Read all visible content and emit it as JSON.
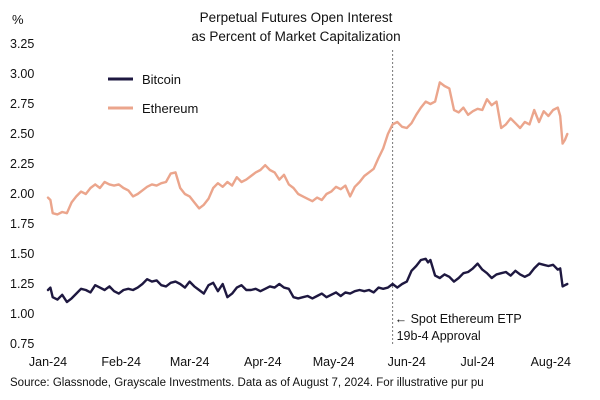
{
  "chart_data": {
    "type": "line",
    "title_lines": [
      "Perpetual Futures Open Interest",
      "as Percent of Market Capitalization"
    ],
    "ylabel": "%",
    "ylim": [
      0.75,
      3.25
    ],
    "yticks": [
      3.25,
      3.0,
      2.75,
      2.5,
      2.25,
      2.0,
      1.75,
      1.5,
      1.25,
      1.0,
      0.75
    ],
    "ytick_labels": [
      "3.25",
      "3.00",
      "2.75",
      "2.50",
      "2.25",
      "2.00",
      "1.75",
      "1.50",
      "1.25",
      "1.00",
      "0.75"
    ],
    "xlim": [
      0,
      222
    ],
    "xticks": [
      {
        "label": "Jan-24",
        "day": 0
      },
      {
        "label": "Feb-24",
        "day": 31
      },
      {
        "label": "Mar-24",
        "day": 60
      },
      {
        "label": "Apr-24",
        "day": 91
      },
      {
        "label": "May-24",
        "day": 121
      },
      {
        "label": "Jun-24",
        "day": 152
      },
      {
        "label": "Jul-24",
        "day": 182
      },
      {
        "label": "Aug-24",
        "day": 213
      }
    ],
    "legend": [
      {
        "label": "Bitcoin",
        "color": "#1e1840"
      },
      {
        "label": "Ethereum",
        "color": "#eba58c"
      }
    ],
    "series": [
      {
        "name": "Bitcoin",
        "color": "#1e1840",
        "points": [
          [
            0,
            1.2
          ],
          [
            1,
            1.22
          ],
          [
            2,
            1.14
          ],
          [
            4,
            1.12
          ],
          [
            6,
            1.16
          ],
          [
            8,
            1.1
          ],
          [
            10,
            1.13
          ],
          [
            12,
            1.17
          ],
          [
            14,
            1.21
          ],
          [
            16,
            1.2
          ],
          [
            18,
            1.18
          ],
          [
            20,
            1.24
          ],
          [
            22,
            1.22
          ],
          [
            24,
            1.2
          ],
          [
            26,
            1.23
          ],
          [
            28,
            1.19
          ],
          [
            30,
            1.17
          ],
          [
            32,
            1.2
          ],
          [
            34,
            1.21
          ],
          [
            36,
            1.2
          ],
          [
            38,
            1.22
          ],
          [
            40,
            1.25
          ],
          [
            42,
            1.29
          ],
          [
            44,
            1.27
          ],
          [
            46,
            1.28
          ],
          [
            48,
            1.24
          ],
          [
            50,
            1.23
          ],
          [
            52,
            1.26
          ],
          [
            54,
            1.27
          ],
          [
            56,
            1.25
          ],
          [
            58,
            1.22
          ],
          [
            60,
            1.27
          ],
          [
            62,
            1.23
          ],
          [
            64,
            1.2
          ],
          [
            66,
            1.17
          ],
          [
            68,
            1.24
          ],
          [
            70,
            1.26
          ],
          [
            72,
            1.19
          ],
          [
            74,
            1.25
          ],
          [
            76,
            1.14
          ],
          [
            78,
            1.17
          ],
          [
            80,
            1.22
          ],
          [
            82,
            1.24
          ],
          [
            84,
            1.2
          ],
          [
            86,
            1.2
          ],
          [
            88,
            1.21
          ],
          [
            90,
            1.19
          ],
          [
            92,
            1.21
          ],
          [
            94,
            1.23
          ],
          [
            96,
            1.22
          ],
          [
            98,
            1.25
          ],
          [
            100,
            1.22
          ],
          [
            102,
            1.21
          ],
          [
            104,
            1.14
          ],
          [
            106,
            1.13
          ],
          [
            108,
            1.14
          ],
          [
            110,
            1.15
          ],
          [
            112,
            1.13
          ],
          [
            114,
            1.15
          ],
          [
            116,
            1.17
          ],
          [
            118,
            1.14
          ],
          [
            120,
            1.16
          ],
          [
            122,
            1.18
          ],
          [
            124,
            1.15
          ],
          [
            126,
            1.18
          ],
          [
            128,
            1.17
          ],
          [
            130,
            1.19
          ],
          [
            132,
            1.2
          ],
          [
            134,
            1.19
          ],
          [
            136,
            1.2
          ],
          [
            138,
            1.18
          ],
          [
            140,
            1.22
          ],
          [
            142,
            1.21
          ],
          [
            144,
            1.22
          ],
          [
            146,
            1.25
          ],
          [
            148,
            1.22
          ],
          [
            150,
            1.25
          ],
          [
            152,
            1.27
          ],
          [
            154,
            1.36
          ],
          [
            156,
            1.4
          ],
          [
            158,
            1.45
          ],
          [
            160,
            1.46
          ],
          [
            161,
            1.43
          ],
          [
            162,
            1.45
          ],
          [
            164,
            1.32
          ],
          [
            166,
            1.3
          ],
          [
            168,
            1.33
          ],
          [
            170,
            1.31
          ],
          [
            172,
            1.27
          ],
          [
            174,
            1.3
          ],
          [
            176,
            1.34
          ],
          [
            178,
            1.35
          ],
          [
            180,
            1.38
          ],
          [
            182,
            1.42
          ],
          [
            184,
            1.37
          ],
          [
            186,
            1.34
          ],
          [
            188,
            1.3
          ],
          [
            190,
            1.33
          ],
          [
            192,
            1.34
          ],
          [
            194,
            1.35
          ],
          [
            196,
            1.32
          ],
          [
            198,
            1.36
          ],
          [
            200,
            1.33
          ],
          [
            202,
            1.31
          ],
          [
            204,
            1.33
          ],
          [
            206,
            1.38
          ],
          [
            208,
            1.42
          ],
          [
            210,
            1.41
          ],
          [
            212,
            1.4
          ],
          [
            214,
            1.41
          ],
          [
            216,
            1.37
          ],
          [
            217,
            1.38
          ],
          [
            218,
            1.23
          ],
          [
            219,
            1.24
          ],
          [
            220,
            1.25
          ]
        ]
      },
      {
        "name": "Ethereum",
        "color": "#eba58c",
        "points": [
          [
            0,
            1.97
          ],
          [
            1,
            1.95
          ],
          [
            2,
            1.84
          ],
          [
            4,
            1.83
          ],
          [
            6,
            1.85
          ],
          [
            8,
            1.84
          ],
          [
            10,
            1.93
          ],
          [
            12,
            1.98
          ],
          [
            14,
            2.02
          ],
          [
            16,
            2.0
          ],
          [
            18,
            2.05
          ],
          [
            20,
            2.08
          ],
          [
            22,
            2.05
          ],
          [
            24,
            2.1
          ],
          [
            26,
            2.08
          ],
          [
            28,
            2.07
          ],
          [
            30,
            2.08
          ],
          [
            32,
            2.05
          ],
          [
            34,
            2.03
          ],
          [
            36,
            1.98
          ],
          [
            38,
            2.0
          ],
          [
            40,
            2.03
          ],
          [
            42,
            2.06
          ],
          [
            44,
            2.08
          ],
          [
            46,
            2.07
          ],
          [
            48,
            2.09
          ],
          [
            50,
            2.1
          ],
          [
            52,
            2.17
          ],
          [
            54,
            2.18
          ],
          [
            56,
            2.05
          ],
          [
            58,
            2.0
          ],
          [
            60,
            1.98
          ],
          [
            62,
            1.93
          ],
          [
            64,
            1.88
          ],
          [
            66,
            1.91
          ],
          [
            68,
            1.96
          ],
          [
            70,
            2.05
          ],
          [
            72,
            2.09
          ],
          [
            74,
            2.06
          ],
          [
            76,
            2.1
          ],
          [
            78,
            2.07
          ],
          [
            80,
            2.14
          ],
          [
            82,
            2.1
          ],
          [
            84,
            2.12
          ],
          [
            86,
            2.15
          ],
          [
            88,
            2.18
          ],
          [
            90,
            2.2
          ],
          [
            92,
            2.24
          ],
          [
            94,
            2.2
          ],
          [
            96,
            2.18
          ],
          [
            98,
            2.12
          ],
          [
            100,
            2.16
          ],
          [
            102,
            2.08
          ],
          [
            104,
            2.05
          ],
          [
            106,
            2.0
          ],
          [
            108,
            1.98
          ],
          [
            110,
            1.96
          ],
          [
            112,
            1.94
          ],
          [
            114,
            1.97
          ],
          [
            116,
            1.95
          ],
          [
            118,
            2.0
          ],
          [
            120,
            2.02
          ],
          [
            122,
            2.06
          ],
          [
            124,
            2.04
          ],
          [
            126,
            2.07
          ],
          [
            128,
            1.98
          ],
          [
            130,
            2.06
          ],
          [
            132,
            2.1
          ],
          [
            134,
            2.15
          ],
          [
            136,
            2.18
          ],
          [
            138,
            2.21
          ],
          [
            140,
            2.3
          ],
          [
            142,
            2.38
          ],
          [
            144,
            2.5
          ],
          [
            146,
            2.58
          ],
          [
            148,
            2.6
          ],
          [
            150,
            2.56
          ],
          [
            152,
            2.55
          ],
          [
            154,
            2.59
          ],
          [
            156,
            2.66
          ],
          [
            158,
            2.72
          ],
          [
            160,
            2.77
          ],
          [
            162,
            2.75
          ],
          [
            164,
            2.77
          ],
          [
            166,
            2.93
          ],
          [
            168,
            2.9
          ],
          [
            170,
            2.88
          ],
          [
            172,
            2.7
          ],
          [
            174,
            2.68
          ],
          [
            176,
            2.72
          ],
          [
            178,
            2.66
          ],
          [
            180,
            2.69
          ],
          [
            182,
            2.71
          ],
          [
            184,
            2.7
          ],
          [
            186,
            2.79
          ],
          [
            188,
            2.74
          ],
          [
            190,
            2.77
          ],
          [
            192,
            2.55
          ],
          [
            194,
            2.58
          ],
          [
            196,
            2.63
          ],
          [
            198,
            2.59
          ],
          [
            200,
            2.55
          ],
          [
            202,
            2.6
          ],
          [
            204,
            2.58
          ],
          [
            206,
            2.7
          ],
          [
            208,
            2.6
          ],
          [
            210,
            2.69
          ],
          [
            212,
            2.65
          ],
          [
            214,
            2.7
          ],
          [
            216,
            2.72
          ],
          [
            217,
            2.65
          ],
          [
            218,
            2.42
          ],
          [
            219,
            2.45
          ],
          [
            220,
            2.5
          ]
        ]
      }
    ],
    "annotation": {
      "day": 146,
      "line1": "← Spot Ethereum ETP",
      "line2": "19b-4 Approval"
    },
    "source": "Source: Glassnode, Grayscale Investments. Data as of August 7, 2024. For illustrative pur pu"
  }
}
